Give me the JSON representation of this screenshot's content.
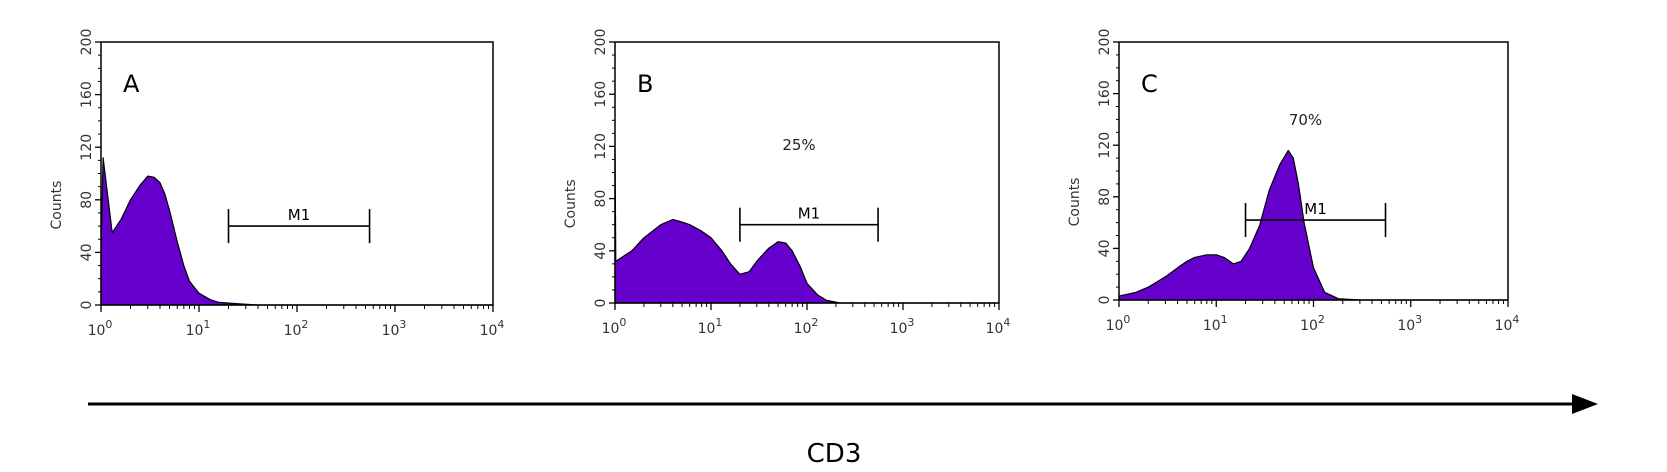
{
  "figure": {
    "xaxis_caption": "CD3",
    "colors": {
      "fill": "#6600cc",
      "stroke": "#000000",
      "frame": "#000000"
    }
  },
  "chart_data": [
    {
      "type": "area",
      "panel_label": "A",
      "xscale": "log",
      "xlim": [
        1,
        10000
      ],
      "ylim": [
        0,
        200
      ],
      "ylabel": "Counts",
      "xticks": [
        {
          "base": "10",
          "exp": "0"
        },
        {
          "base": "10",
          "exp": "1"
        },
        {
          "base": "10",
          "exp": "2"
        },
        {
          "base": "10",
          "exp": "3"
        },
        {
          "base": "10",
          "exp": "4"
        }
      ],
      "yticks": [
        "0",
        "40",
        "80",
        "120",
        "160",
        "200"
      ],
      "marker": {
        "label": "M1",
        "x_start": 20,
        "x_end": 550,
        "y": 60
      },
      "percent_label": "",
      "x": [
        1,
        1.05,
        1.3,
        1.6,
        2.0,
        2.5,
        3.0,
        3.5,
        4.0,
        4.5,
        5.0,
        6.0,
        7.0,
        8.0,
        10.0,
        13.0,
        16.0,
        25.0,
        40.0,
        10000
      ],
      "values": [
        40,
        112,
        55,
        65,
        80,
        91,
        98,
        97,
        93,
        84,
        72,
        48,
        30,
        18,
        9,
        4,
        2,
        1,
        0,
        0
      ]
    },
    {
      "type": "area",
      "panel_label": "B",
      "xscale": "log",
      "xlim": [
        1,
        10000
      ],
      "ylim": [
        0,
        200
      ],
      "ylabel": "Counts",
      "xticks": [
        {
          "base": "10",
          "exp": "0"
        },
        {
          "base": "10",
          "exp": "1"
        },
        {
          "base": "10",
          "exp": "2"
        },
        {
          "base": "10",
          "exp": "3"
        },
        {
          "base": "10",
          "exp": "4"
        }
      ],
      "yticks": [
        "0",
        "40",
        "80",
        "120",
        "160",
        "200"
      ],
      "marker": {
        "label": "M1",
        "x_start": 20,
        "x_end": 550,
        "y": 60
      },
      "percent_label": "25%",
      "x": [
        1,
        1.02,
        1.5,
        2.0,
        3.0,
        4.0,
        5.0,
        6.0,
        8.0,
        10.0,
        13.0,
        16.0,
        20.0,
        25.0,
        30.0,
        40.0,
        50.0,
        60.0,
        70.0,
        85.0,
        100.0,
        130.0,
        160.0,
        220.0,
        10000
      ],
      "values": [
        118,
        32,
        40,
        50,
        60,
        64,
        62,
        60,
        55,
        50,
        40,
        30,
        22,
        24,
        32,
        42,
        47,
        46,
        40,
        28,
        15,
        6,
        2,
        0,
        0
      ]
    },
    {
      "type": "area",
      "panel_label": "C",
      "xscale": "log",
      "xlim": [
        1,
        10000
      ],
      "ylim": [
        0,
        200
      ],
      "ylabel": "Counts",
      "xticks": [
        {
          "base": "10",
          "exp": "0"
        },
        {
          "base": "10",
          "exp": "1"
        },
        {
          "base": "10",
          "exp": "2"
        },
        {
          "base": "10",
          "exp": "3"
        },
        {
          "base": "10",
          "exp": "4"
        }
      ],
      "yticks": [
        "0",
        "40",
        "80",
        "120",
        "160",
        "200"
      ],
      "marker": {
        "label": "M1",
        "x_start": 20,
        "x_end": 550,
        "y": 62
      },
      "percent_label": "70%",
      "x": [
        1,
        1.5,
        2.0,
        3.0,
        4.0,
        5.0,
        6.0,
        8.0,
        10.0,
        12.0,
        15.0,
        18.0,
        22.0,
        28.0,
        35.0,
        45.0,
        55.0,
        62.0,
        70.0,
        80.0,
        100.0,
        130.0,
        180.0,
        300.0,
        10000
      ],
      "values": [
        3,
        6,
        10,
        18,
        25,
        30,
        33,
        35,
        35,
        33,
        28,
        30,
        40,
        58,
        85,
        105,
        116,
        110,
        90,
        60,
        25,
        6,
        1,
        0,
        0
      ]
    }
  ]
}
